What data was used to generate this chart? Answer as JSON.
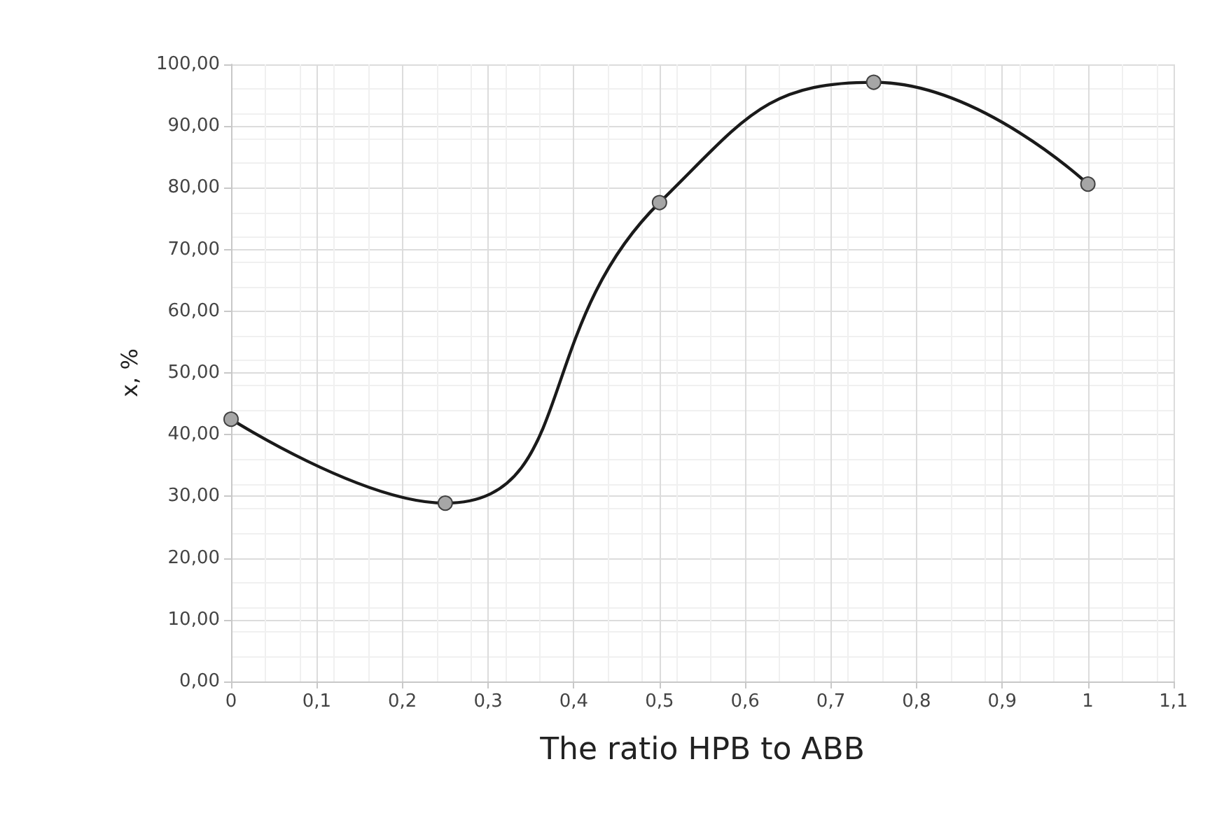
{
  "chart_data": {
    "type": "line",
    "xlabel": "The ratio HPB to ABB",
    "ylabel": "x, %",
    "x": [
      0,
      0.25,
      0.5,
      0.75,
      1
    ],
    "series": [
      {
        "color": "#1a1a1a",
        "values": [
          42.5,
          28.9,
          77.6,
          97.1,
          80.6
        ]
      }
    ],
    "xlim": [
      0,
      1.1
    ],
    "xticks": [
      0,
      {
        "value": 0.1,
        "label": "0,1"
      },
      {
        "value": 0.2,
        "label": "0,2"
      },
      {
        "value": 0.3,
        "label": "0,3"
      },
      {
        "value": 0.4,
        "label": "0,4"
      },
      {
        "value": 0.5,
        "label": "0,5"
      },
      {
        "value": 0.6,
        "label": "0,6"
      },
      {
        "value": 0.7,
        "label": "0,7"
      },
      {
        "value": 0.8,
        "label": "0,8"
      },
      {
        "value": 0.9,
        "label": "0,9"
      },
      1,
      {
        "value": 1.1,
        "label": "1,1"
      }
    ],
    "ylim": [
      0,
      100
    ],
    "yticks": [
      {
        "value": 0,
        "label": "0,00"
      },
      {
        "value": 10,
        "label": "10,00"
      },
      {
        "value": 20,
        "label": "20,00"
      },
      {
        "value": 30,
        "label": "30,00"
      },
      {
        "value": 40,
        "label": "40,00"
      },
      {
        "value": 50,
        "label": "50,00"
      },
      {
        "value": 60,
        "label": "60,00"
      },
      {
        "value": 70,
        "label": "70,00"
      },
      {
        "value": 80,
        "label": "80,00"
      },
      {
        "value": 90,
        "label": "90,00"
      },
      {
        "value": 100,
        "label": "100,00"
      }
    ],
    "grid": true,
    "marker": "circle",
    "line_style": "solid"
  }
}
